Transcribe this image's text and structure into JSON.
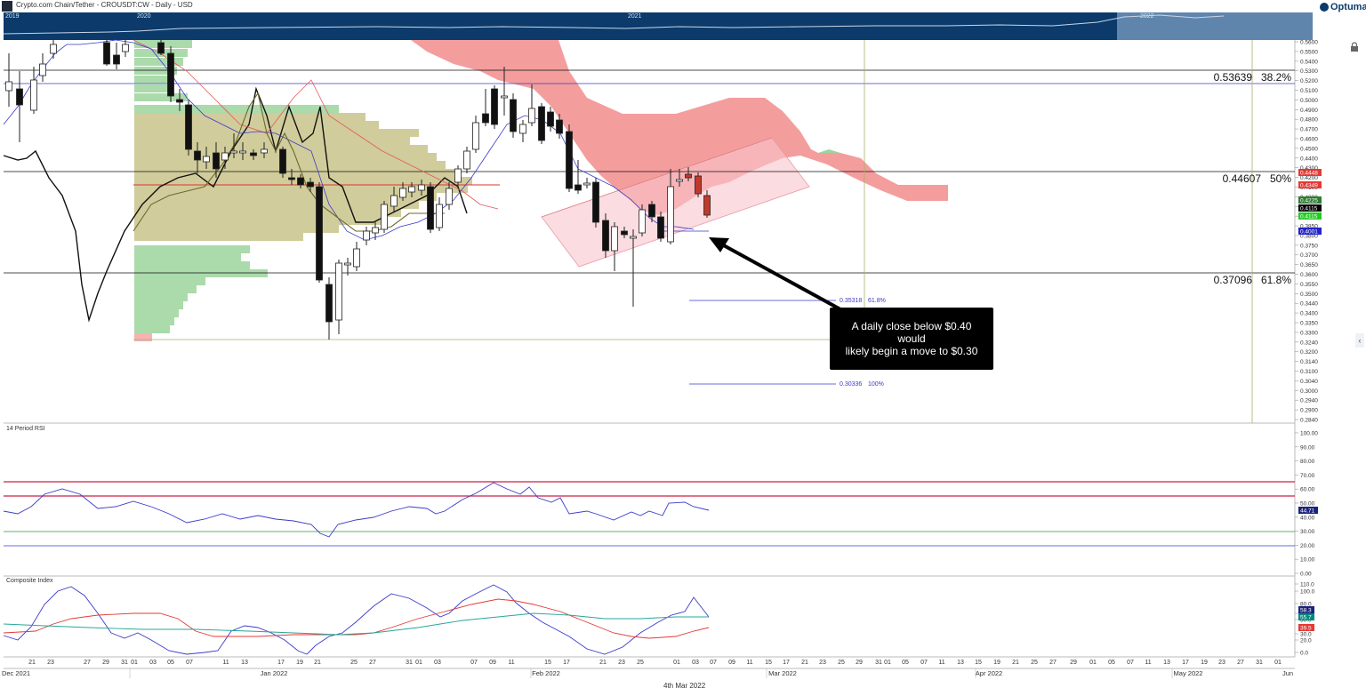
{
  "window": {
    "title": "Crypto.com Chain/Tether - CROUSDT:CW - Daily - USD",
    "logo": "Optuma",
    "nav_years": [
      "2019",
      "2020",
      "2021",
      "2022"
    ],
    "date_label": "4th Mar 2022"
  },
  "annotation": {
    "line1": "A daily close below $0.40 would",
    "line2": "likely begin a move to $0.30"
  },
  "levels": {
    "fib382": {
      "value": "0.53639",
      "pct": "38.2%"
    },
    "fib50": {
      "value": "0.44607",
      "pct": "50%"
    },
    "fib618": {
      "value": "0.37096",
      "pct": "61.8%"
    },
    "ext618": {
      "value": "0.35318",
      "pct": "61.8%"
    },
    "ext100": {
      "value": "0.30336",
      "pct": "100%"
    }
  },
  "price_badges": [
    {
      "text": "0.4448",
      "color": "#e53935"
    },
    {
      "text": "0.4349",
      "color": "#e53935"
    },
    {
      "text": "0.4225",
      "color": "#2e7d32"
    },
    {
      "text": "0.4115",
      "color": "#000000"
    },
    {
      "text": "0.4115",
      "color": "#22cc22"
    },
    {
      "text": "0.4001",
      "color": "#2222cc"
    }
  ],
  "rsi_badge": {
    "text": "44.71",
    "color": "#1a237e"
  },
  "ci_badges": [
    {
      "text": "58.3",
      "color": "#1a237e"
    },
    {
      "text": "55.7",
      "color": "#00897b"
    },
    {
      "text": "39.5",
      "color": "#e53935"
    }
  ],
  "icons": {
    "lock": "lock-icon",
    "collapse": "chevron-left-icon",
    "app": "app-icon"
  },
  "chart_data": [
    {
      "type": "candlestick",
      "title": "Crypto.com Chain/Tether - CROUSDT:CW - Daily - USD",
      "y_ticks": [
        "0.5600",
        "0.5500",
        "0.5400",
        "0.5300",
        "0.5200",
        "0.5100",
        "0.5000",
        "0.4900",
        "0.4800",
        "0.4700",
        "0.4600",
        "0.4500",
        "0.4400",
        "0.4300",
        "0.4200",
        "0.4100",
        "0.4000",
        "0.3950",
        "0.3900",
        "0.3850",
        "0.3800",
        "0.3750",
        "0.3700",
        "0.3650",
        "0.3600",
        "0.3550",
        "0.3500",
        "0.3440",
        "0.3400",
        "0.3350",
        "0.3300",
        "0.3240",
        "0.3200",
        "0.3140",
        "0.3100",
        "0.3040",
        "0.3000",
        "0.2940",
        "0.2900",
        "0.2840"
      ],
      "ylim": [
        0.284,
        0.565
      ],
      "x_day_ticks": [
        "21",
        "23",
        "27",
        "29",
        "31",
        "01",
        "03",
        "05",
        "07",
        "11",
        "13",
        "17",
        "19",
        "21",
        "25",
        "27",
        "31",
        "01",
        "03",
        "07",
        "09",
        "11",
        "15",
        "17",
        "21",
        "23",
        "25",
        "01",
        "03",
        "07",
        "09",
        "11",
        "15",
        "17",
        "21",
        "23",
        "25",
        "29",
        "31",
        "01",
        "05",
        "07",
        "11",
        "13",
        "15",
        "19",
        "21",
        "25",
        "27",
        "29",
        "01",
        "05",
        "07",
        "11",
        "13",
        "17",
        "19",
        "23",
        "27",
        "31",
        "01"
      ],
      "x_month_ticks": [
        "Dec 2021",
        "Jan 2022",
        "Feb 2022",
        "Mar 2022",
        "Apr 2022",
        "May 2022",
        "Jun"
      ],
      "horizontal_levels": [
        0.53639,
        0.44607,
        0.37096
      ],
      "ohlc_recent": [
        {
          "o": 0.445,
          "h": 0.452,
          "l": 0.44,
          "c": 0.448
        },
        {
          "o": 0.448,
          "h": 0.45,
          "l": 0.432,
          "c": 0.435
        },
        {
          "o": 0.435,
          "h": 0.437,
          "l": 0.41,
          "c": 0.4115
        }
      ],
      "last_close": 0.4115
    },
    {
      "type": "line",
      "title": "14 Period RSI",
      "y_ticks": [
        "100.00",
        "90.00",
        "80.00",
        "70.00",
        "60.00",
        "50.00",
        "40.00",
        "30.00",
        "20.00",
        "10.00",
        "0.00"
      ],
      "ylim": [
        0,
        100
      ],
      "levels": [
        65,
        55,
        30,
        20
      ],
      "last": 44.71
    },
    {
      "type": "line",
      "title": "Composite Index",
      "y_ticks": [
        "110.0",
        "100.0",
        "80.0",
        "60.0",
        "50.0",
        "30.0",
        "20.0",
        "0.0"
      ],
      "ylim": [
        0,
        115
      ],
      "series": [
        {
          "last": 58.3
        },
        {
          "last": 55.7
        },
        {
          "last": 39.5
        }
      ]
    }
  ]
}
